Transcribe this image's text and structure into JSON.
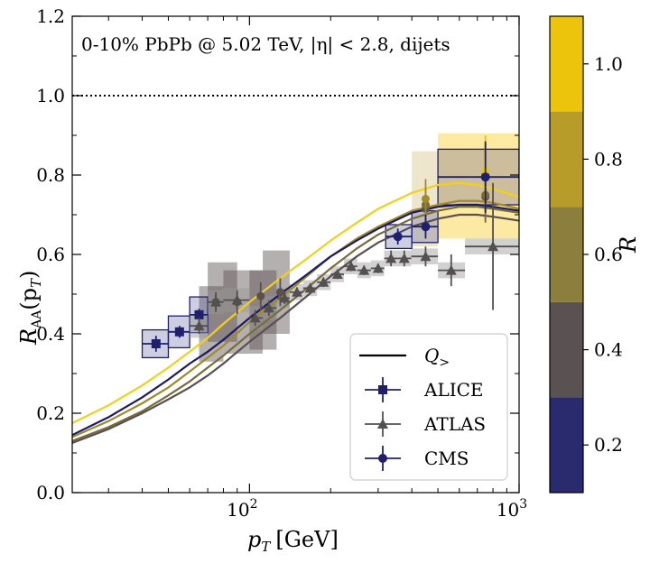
{
  "chart_data": {
    "type": "scatter",
    "title": "0-10% PbPb @ 5.02 TeV, |η| < 2.8, dijets",
    "xlabel": "p",
    "xlabel_sub": "T",
    "xlabel_unit": "[GeV]",
    "ylabel": "R",
    "ylabel_sub": "AA",
    "ylabel_arg": "(p",
    "ylabel_arg_sub": "T",
    "ylabel_close": ")",
    "xscale": "log",
    "xlim": [
      22,
      1000
    ],
    "ylim": [
      0.0,
      1.2
    ],
    "x_ticks": [
      {
        "value": 100,
        "base": "10",
        "exp": "2"
      },
      {
        "value": 1000,
        "base": "10",
        "exp": "3"
      }
    ],
    "y_ticks": [
      "0.0",
      "0.2",
      "0.4",
      "0.6",
      "0.8",
      "1.0",
      "1.2"
    ],
    "reference_line": 1.0,
    "grid": false,
    "legend_placement": "bottom-right",
    "legend": [
      {
        "label": "Q",
        "label_sub": ">",
        "kind": "line",
        "color": "#000000"
      },
      {
        "label": "ALICE",
        "kind": "square",
        "color": "#1f1f6b"
      },
      {
        "label": "ATLAS",
        "kind": "triangle",
        "color": "#545050"
      },
      {
        "label": "CMS",
        "kind": "circle",
        "color": "#1f1f6b"
      }
    ],
    "colorbar": {
      "label": "R",
      "range": [
        0.1,
        1.1
      ],
      "ticks": [
        "0.2",
        "0.4",
        "0.6",
        "0.8",
        "1.0"
      ],
      "bands": [
        {
          "from": 0.1,
          "to": 0.3,
          "color": "#2a2a6e"
        },
        {
          "from": 0.3,
          "to": 0.5,
          "color": "#5a5252"
        },
        {
          "from": 0.5,
          "to": 0.7,
          "color": "#8c7e3c"
        },
        {
          "from": 0.7,
          "to": 0.9,
          "color": "#b89c2a"
        },
        {
          "from": 0.9,
          "to": 1.1,
          "color": "#ecc40c"
        }
      ]
    },
    "curves": [
      {
        "R": 1.0,
        "color": "#f2d01a",
        "points": [
          [
            22,
            0.175
          ],
          [
            30,
            0.22
          ],
          [
            40,
            0.27
          ],
          [
            50,
            0.315
          ],
          [
            60,
            0.355
          ],
          [
            70,
            0.39
          ],
          [
            80,
            0.425
          ],
          [
            100,
            0.48
          ],
          [
            130,
            0.54
          ],
          [
            160,
            0.585
          ],
          [
            200,
            0.635
          ],
          [
            250,
            0.68
          ],
          [
            300,
            0.715
          ],
          [
            400,
            0.755
          ],
          [
            500,
            0.775
          ],
          [
            600,
            0.78
          ],
          [
            700,
            0.775
          ],
          [
            800,
            0.765
          ],
          [
            1000,
            0.745
          ]
        ]
      },
      {
        "R": 0.8,
        "color": "#a08a2a",
        "points": [
          [
            22,
            0.14
          ],
          [
            30,
            0.18
          ],
          [
            40,
            0.225
          ],
          [
            50,
            0.265
          ],
          [
            60,
            0.305
          ],
          [
            70,
            0.34
          ],
          [
            80,
            0.37
          ],
          [
            100,
            0.43
          ],
          [
            130,
            0.49
          ],
          [
            160,
            0.54
          ],
          [
            200,
            0.595
          ],
          [
            250,
            0.64
          ],
          [
            300,
            0.67
          ],
          [
            400,
            0.71
          ],
          [
            500,
            0.725
          ],
          [
            600,
            0.735
          ],
          [
            700,
            0.735
          ],
          [
            800,
            0.73
          ],
          [
            1000,
            0.715
          ]
        ]
      },
      {
        "R": 0.2,
        "color": "#1a1a66",
        "points": [
          [
            22,
            0.145
          ],
          [
            30,
            0.19
          ],
          [
            40,
            0.24
          ],
          [
            50,
            0.285
          ],
          [
            60,
            0.325
          ],
          [
            70,
            0.355
          ],
          [
            80,
            0.385
          ],
          [
            100,
            0.44
          ],
          [
            130,
            0.5
          ],
          [
            160,
            0.545
          ],
          [
            200,
            0.595
          ],
          [
            250,
            0.635
          ],
          [
            300,
            0.665
          ],
          [
            400,
            0.705
          ],
          [
            500,
            0.72
          ],
          [
            600,
            0.725
          ],
          [
            700,
            0.725
          ],
          [
            800,
            0.72
          ],
          [
            1000,
            0.71
          ]
        ]
      },
      {
        "R": 0.6,
        "color": "#786c3c",
        "points": [
          [
            22,
            0.13
          ],
          [
            30,
            0.165
          ],
          [
            40,
            0.205
          ],
          [
            50,
            0.245
          ],
          [
            60,
            0.28
          ],
          [
            70,
            0.315
          ],
          [
            80,
            0.345
          ],
          [
            100,
            0.4
          ],
          [
            130,
            0.46
          ],
          [
            160,
            0.51
          ],
          [
            200,
            0.565
          ],
          [
            250,
            0.615
          ],
          [
            300,
            0.65
          ],
          [
            400,
            0.69
          ],
          [
            500,
            0.71
          ],
          [
            600,
            0.72
          ],
          [
            700,
            0.72
          ],
          [
            800,
            0.715
          ],
          [
            1000,
            0.705
          ]
        ]
      },
      {
        "R": 0.4,
        "color": "#5a5050",
        "points": [
          [
            22,
            0.125
          ],
          [
            30,
            0.16
          ],
          [
            40,
            0.2
          ],
          [
            50,
            0.235
          ],
          [
            60,
            0.265
          ],
          [
            70,
            0.295
          ],
          [
            80,
            0.325
          ],
          [
            100,
            0.38
          ],
          [
            130,
            0.44
          ],
          [
            160,
            0.49
          ],
          [
            200,
            0.545
          ],
          [
            250,
            0.595
          ],
          [
            300,
            0.63
          ],
          [
            400,
            0.67
          ],
          [
            500,
            0.69
          ],
          [
            600,
            0.7
          ],
          [
            700,
            0.7
          ],
          [
            800,
            0.695
          ],
          [
            1000,
            0.685
          ]
        ]
      }
    ],
    "series": [
      {
        "name": "ALICE",
        "marker": "square",
        "color": "#1f1f6b",
        "points": [
          {
            "x": 45,
            "y": 0.375,
            "err": 0.02,
            "sys": 0.035,
            "xlo": 40,
            "xhi": 50
          },
          {
            "x": 55,
            "y": 0.405,
            "err": 0.015,
            "sys": 0.04,
            "xlo": 50,
            "xhi": 60
          },
          {
            "x": 65,
            "y": 0.448,
            "err": 0.015,
            "sys": 0.045,
            "xlo": 60,
            "xhi": 70
          }
        ]
      },
      {
        "name": "ATLAS",
        "marker": "triangle",
        "color": "#545050",
        "points": [
          {
            "x": 65,
            "y": 0.42,
            "err": 0.02,
            "sys": 0.03,
            "xlo": 60,
            "xhi": 70
          },
          {
            "x": 75,
            "y": 0.48,
            "err": 0.02,
            "sys": 0.03,
            "xlo": 70,
            "xhi": 80
          },
          {
            "x": 90,
            "y": 0.485,
            "err": 0.02,
            "sys": 0.03,
            "xlo": 80,
            "xhi": 100
          },
          {
            "x": 105,
            "y": 0.44,
            "err": 0.02,
            "sys": 0.03,
            "xlo": 100,
            "xhi": 112
          },
          {
            "x": 118,
            "y": 0.465,
            "err": 0.02,
            "sys": 0.03,
            "xlo": 112,
            "xhi": 126
          },
          {
            "x": 135,
            "y": 0.49,
            "err": 0.015,
            "sys": 0.025,
            "xlo": 126,
            "xhi": 141
          },
          {
            "x": 150,
            "y": 0.505,
            "err": 0.012,
            "sys": 0.02,
            "xlo": 141,
            "xhi": 158
          },
          {
            "x": 168,
            "y": 0.515,
            "err": 0.012,
            "sys": 0.02,
            "xlo": 158,
            "xhi": 178
          },
          {
            "x": 188,
            "y": 0.53,
            "err": 0.012,
            "sys": 0.02,
            "xlo": 178,
            "xhi": 200
          },
          {
            "x": 212,
            "y": 0.55,
            "err": 0.012,
            "sys": 0.02,
            "xlo": 200,
            "xhi": 224
          },
          {
            "x": 238,
            "y": 0.57,
            "err": 0.012,
            "sys": 0.02,
            "xlo": 224,
            "xhi": 251
          },
          {
            "x": 266,
            "y": 0.56,
            "err": 0.012,
            "sys": 0.02,
            "xlo": 251,
            "xhi": 282
          },
          {
            "x": 300,
            "y": 0.565,
            "err": 0.012,
            "sys": 0.02,
            "xlo": 282,
            "xhi": 316
          },
          {
            "x": 335,
            "y": 0.59,
            "err": 0.02,
            "sys": 0.02,
            "xlo": 316,
            "xhi": 355
          },
          {
            "x": 375,
            "y": 0.59,
            "err": 0.02,
            "sys": 0.02,
            "xlo": 355,
            "xhi": 398
          },
          {
            "x": 450,
            "y": 0.595,
            "err": 0.025,
            "sys": 0.02,
            "xlo": 398,
            "xhi": 500
          },
          {
            "x": 560,
            "y": 0.56,
            "err": 0.04,
            "sys": 0.02,
            "xlo": 500,
            "xhi": 630
          },
          {
            "x": 800,
            "y": 0.62,
            "err": 0.16,
            "sys": 0.02,
            "xlo": 630,
            "xhi": 1000
          }
        ]
      },
      {
        "name": "CMS",
        "marker": "circle",
        "color": "#1f1f6b",
        "points": [
          {
            "x": 355,
            "y": 0.645,
            "err": 0.02,
            "sys": 0.03,
            "xlo": 320,
            "xhi": 400
          },
          {
            "x": 450,
            "y": 0.67,
            "err": 0.03,
            "sys": 0.04,
            "xlo": 400,
            "xhi": 500
          },
          {
            "x": 750,
            "y": 0.795,
            "err": 0.09,
            "sys": 0.07,
            "xlo": 500,
            "xhi": 1000
          }
        ]
      }
    ],
    "overlays": [
      {
        "R": 0.4,
        "color": "#5a5050",
        "points": [
          {
            "x": 75,
            "y": 0.48,
            "err": 0.025
          },
          {
            "x": 90,
            "y": 0.48,
            "err": 0.03
          },
          {
            "x": 110,
            "y": 0.495,
            "err": 0.035
          },
          {
            "x": 130,
            "y": 0.505,
            "err": 0.035
          },
          {
            "x": 450,
            "y": 0.715,
            "err": 0.03
          },
          {
            "x": 750,
            "y": 0.745,
            "err": 0.06
          }
        ]
      },
      {
        "R": 0.6,
        "color": "#786c3c",
        "points": [
          {
            "x": 450,
            "y": 0.725,
            "err": 0.04
          },
          {
            "x": 750,
            "y": 0.75,
            "err": 0.07
          }
        ]
      },
      {
        "R": 0.8,
        "color": "#a08a2a",
        "points": [
          {
            "x": 450,
            "y": 0.74,
            "err": 0.05
          },
          {
            "x": 750,
            "y": 0.8,
            "err": 0.08
          }
        ]
      },
      {
        "R": 1.0,
        "color": "#ecc40c",
        "points": [
          {
            "x": 750,
            "y": 0.81,
            "err": 0.09
          }
        ]
      }
    ],
    "sys_boxes": [
      {
        "xlo": 65,
        "xhi": 80,
        "ylo": 0.33,
        "yhi": 0.52,
        "color": "#5a5050"
      },
      {
        "xlo": 70,
        "xhi": 90,
        "ylo": 0.38,
        "yhi": 0.58,
        "color": "#5a5050"
      },
      {
        "xlo": 80,
        "xhi": 112,
        "ylo": 0.35,
        "yhi": 0.56,
        "color": "#5a5050"
      },
      {
        "xlo": 100,
        "xhi": 126,
        "ylo": 0.36,
        "yhi": 0.56,
        "color": "#5a5050"
      },
      {
        "xlo": 112,
        "xhi": 141,
        "ylo": 0.4,
        "yhi": 0.61,
        "color": "#5a5050"
      },
      {
        "xlo": 400,
        "xhi": 500,
        "ylo": 0.62,
        "yhi": 0.86,
        "color": "#d8c890"
      },
      {
        "xlo": 500,
        "xhi": 1000,
        "ylo": 0.64,
        "yhi": 0.905,
        "color": "#f8d030"
      }
    ]
  }
}
